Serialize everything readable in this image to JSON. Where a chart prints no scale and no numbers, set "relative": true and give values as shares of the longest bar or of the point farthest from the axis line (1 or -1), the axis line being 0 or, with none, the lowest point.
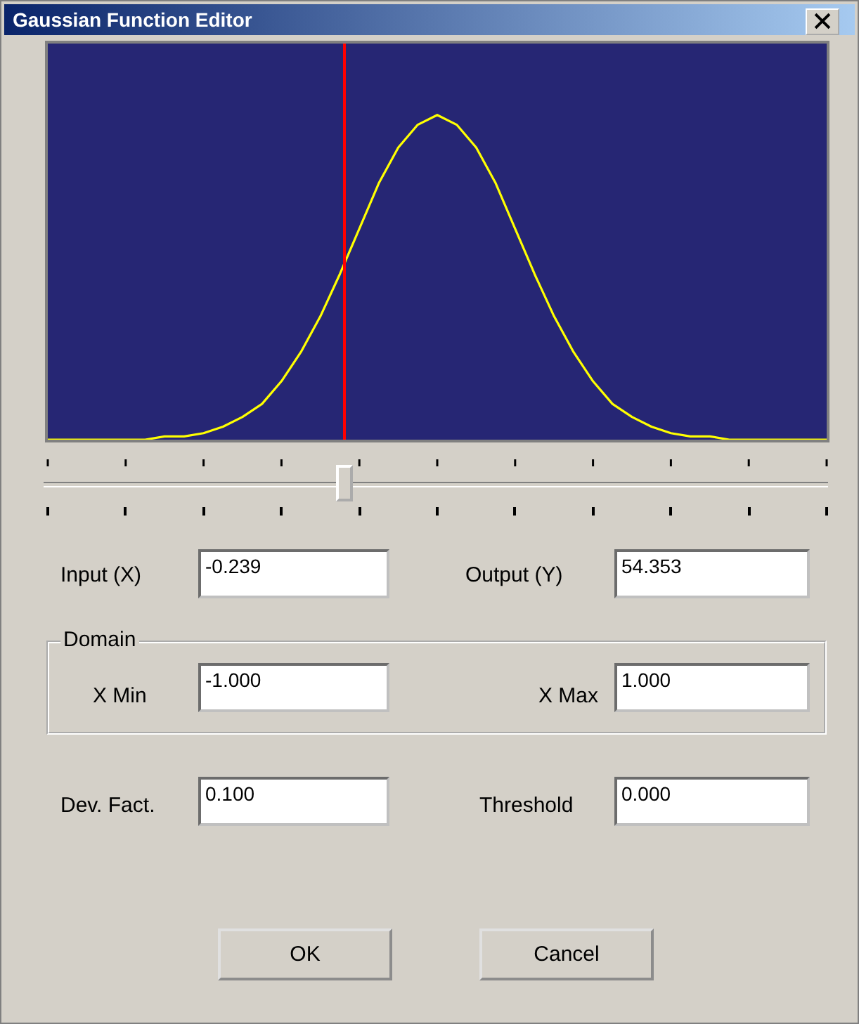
{
  "chart_data": [
    {
      "type": "line",
      "title": "Gaussian Function Editor",
      "relative": true,
      "color": "#ffff00",
      "marker": "none",
      "legend": false,
      "tick_labels": false,
      "categories": [
        null,
        null,
        null,
        null,
        null,
        null,
        null,
        null,
        null,
        null,
        null,
        null,
        null,
        null,
        null,
        null,
        null,
        null,
        null,
        null,
        null,
        null,
        null,
        null,
        null,
        null,
        null,
        null,
        null,
        null,
        null,
        null,
        null,
        null,
        null,
        null,
        null,
        null,
        null,
        null,
        null
      ],
      "values": [
        0,
        0,
        0,
        0,
        0,
        0,
        0.01,
        0.01,
        0.02,
        0.04,
        0.07,
        0.11,
        0.18,
        0.27,
        0.38,
        0.51,
        0.65,
        0.79,
        0.9,
        0.97,
        1,
        0.97,
        0.9,
        0.79,
        0.65,
        0.51,
        0.38,
        0.27,
        0.18,
        0.11,
        0.07,
        0.04,
        0.02,
        0.01,
        0.01,
        0,
        0,
        0,
        0,
        0,
        0
      ]
    },
    {
      "type": "other",
      "annotations": [
        "Input (X)",
        "-0.239",
        "Output (Y)",
        "54.353",
        "Domain",
        "X Min",
        "-1.000",
        "X Max",
        "1.000",
        "Dev. Fact.",
        "0.100",
        "Threshold",
        "0.000",
        "OK",
        "Cancel"
      ]
    }
  ]
}
